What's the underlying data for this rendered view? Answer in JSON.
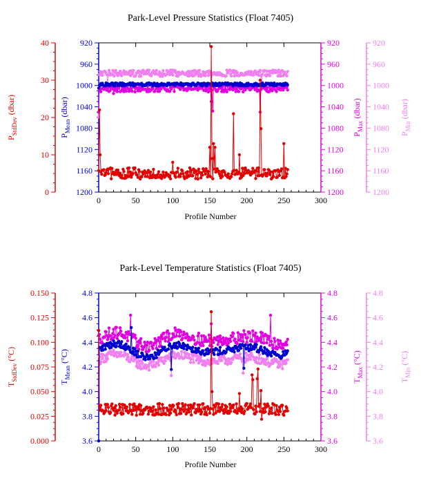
{
  "chart_data": [
    {
      "type": "scatter",
      "title": "Park-Level Pressure Statistics (Float 7405)",
      "xlabel": "Profile Number",
      "xlim": [
        0,
        300
      ],
      "x_ticks": [
        "0",
        "50",
        "100",
        "150",
        "200",
        "250",
        "300"
      ],
      "axes": {
        "sd": {
          "label_main": "P",
          "label_sub": "StdDev",
          "unit": "(dbar)",
          "color": "#e00000",
          "lim": [
            0,
            40
          ],
          "ticks": [
            "0",
            "10",
            "20",
            "30",
            "40"
          ],
          "tick_values": [
            0,
            10,
            20,
            30,
            40
          ],
          "inverted": false
        },
        "mean": {
          "label_main": "P",
          "label_sub": "Mean",
          "unit": "(dbar)",
          "color": "#0000cc",
          "lim": [
            920,
            1200
          ],
          "ticks": [
            "920",
            "960",
            "1000",
            "1040",
            "1080",
            "1120",
            "1160",
            "1200"
          ],
          "tick_values": [
            920,
            960,
            1000,
            1040,
            1080,
            1120,
            1160,
            1200
          ],
          "inverted": true
        },
        "max": {
          "label_main": "P",
          "label_sub": "Max",
          "unit": "(dbar)",
          "color": "#e000e0",
          "lim": [
            920,
            1200
          ],
          "ticks": [
            "920",
            "960",
            "1000",
            "1040",
            "1080",
            "1120",
            "1160",
            "1200"
          ],
          "tick_values": [
            920,
            960,
            1000,
            1040,
            1080,
            1120,
            1160,
            1200
          ],
          "inverted": true
        },
        "min": {
          "label_main": "P",
          "label_sub": "Min",
          "unit": "(dbar)",
          "color": "#f080f0",
          "lim": [
            920,
            1200
          ],
          "ticks": [
            "920",
            "960",
            "1000",
            "1040",
            "1080",
            "1120",
            "1160",
            "1200"
          ],
          "tick_values": [
            920,
            960,
            1000,
            1040,
            1080,
            1120,
            1160,
            1200
          ],
          "inverted": true
        }
      },
      "series": [
        {
          "axis": "min",
          "base": 977,
          "noise": 6,
          "wave": 0,
          "spikes": [
            [
              0,
              1059
            ],
            [
              12,
              998
            ],
            [
              152,
              1000
            ],
            [
              220,
              1000
            ]
          ]
        },
        {
          "axis": "max",
          "base": 1006,
          "noise": 6,
          "wave": 0,
          "spikes": [
            [
              0,
              1050
            ],
            [
              20,
              1015
            ],
            [
              152,
              1030
            ],
            [
              154,
              1048
            ],
            [
              218,
              1050
            ],
            [
              223,
              1005
            ]
          ]
        },
        {
          "axis": "mean",
          "base": 998,
          "noise": 3,
          "wave": 0,
          "spikes": [
            [
              0,
              1005
            ],
            [
              152,
              1000
            ]
          ]
        },
        {
          "axis": "sd",
          "base": 5,
          "noise": 1.5,
          "wave": 0,
          "spikes": [
            [
              1,
              22
            ],
            [
              2,
              10
            ],
            [
              100,
              8
            ],
            [
              150,
              12
            ],
            [
              152,
              39
            ],
            [
              153,
              9
            ],
            [
              155,
              13
            ],
            [
              157,
              12
            ],
            [
              182,
              21
            ],
            [
              190,
              10
            ],
            [
              218,
              30
            ],
            [
              219,
              17
            ],
            [
              250,
              13
            ]
          ]
        }
      ],
      "n_profiles": 256
    },
    {
      "type": "scatter",
      "title": "Park-Level Temperature Statistics (Float 7405)",
      "xlabel": "Profile Number",
      "xlim": [
        0,
        300
      ],
      "x_ticks": [
        "0",
        "50",
        "100",
        "150",
        "200",
        "250",
        "300"
      ],
      "axes": {
        "sd": {
          "label_main": "T",
          "label_sub": "StdDev",
          "unit": "(°C)",
          "color": "#e00000",
          "lim": [
            0,
            0.15
          ],
          "ticks": [
            "0.000",
            "0.025",
            "0.050",
            "0.075",
            "0.100",
            "0.125",
            "0.150"
          ],
          "tick_values": [
            0,
            0.025,
            0.05,
            0.075,
            0.1,
            0.125,
            0.15
          ],
          "inverted": false
        },
        "mean": {
          "label_main": "T",
          "label_sub": "Mean",
          "unit": "(°C)",
          "color": "#0000cc",
          "lim": [
            3.6,
            4.8
          ],
          "ticks": [
            "3.6",
            "3.8",
            "4.0",
            "4.2",
            "4.4",
            "4.6",
            "4.8"
          ],
          "tick_values": [
            3.6,
            3.8,
            4.0,
            4.2,
            4.4,
            4.6,
            4.8
          ],
          "inverted": false
        },
        "max": {
          "label_main": "T",
          "label_sub": "Max",
          "unit": "(°C)",
          "color": "#e000e0",
          "lim": [
            3.6,
            4.8
          ],
          "ticks": [
            "3.6",
            "3.8",
            "4.0",
            "4.2",
            "4.4",
            "4.6",
            "4.8"
          ],
          "tick_values": [
            3.6,
            3.8,
            4.0,
            4.2,
            4.4,
            4.6,
            4.8
          ],
          "inverted": false
        },
        "min": {
          "label_main": "T",
          "label_sub": "Min",
          "unit": "(°C)",
          "color": "#f080f0",
          "lim": [
            3.6,
            4.8
          ],
          "ticks": [
            "3.6",
            "3.8",
            "4.0",
            "4.2",
            "4.4",
            "4.6",
            "4.8"
          ],
          "tick_values": [
            3.6,
            3.8,
            4.0,
            4.2,
            4.4,
            4.6,
            4.8
          ],
          "inverted": false
        }
      },
      "series": [
        {
          "axis": "min",
          "base": 4.26,
          "noise": 0.04,
          "wave": 0.05,
          "spikes": [
            [
              0,
              3.6
            ],
            [
              98,
              4.13
            ],
            [
              195,
              4.15
            ]
          ]
        },
        {
          "axis": "max",
          "base": 4.43,
          "noise": 0.05,
          "wave": 0.06,
          "spikes": [
            [
              43,
              4.62
            ],
            [
              152,
              4.55
            ],
            [
              232,
              4.62
            ]
          ]
        },
        {
          "axis": "mean",
          "base": 4.34,
          "noise": 0.03,
          "wave": 0.06,
          "spikes": [
            [
              0,
              3.6
            ],
            [
              44,
              4.52
            ],
            [
              98,
              4.18
            ],
            [
              196,
              4.19
            ]
          ]
        },
        {
          "axis": "sd",
          "base": 0.032,
          "noise": 0.006,
          "wave": 0,
          "spikes": [
            [
              0,
              0.112
            ],
            [
              152,
              0.131
            ],
            [
              153,
              0.05
            ],
            [
              207,
              0.067
            ],
            [
              208,
              0.062
            ],
            [
              214,
              0.063
            ],
            [
              215,
              0.073
            ],
            [
              219,
              0.051
            ],
            [
              220,
              0.022
            ],
            [
              190,
              0.048
            ]
          ]
        }
      ],
      "n_profiles": 256
    }
  ]
}
